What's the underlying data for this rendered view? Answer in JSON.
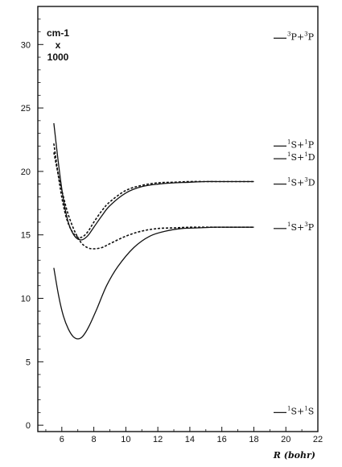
{
  "chart_data": {
    "type": "line",
    "unit_label_lines": [
      "cm-1",
      "x",
      "1000"
    ],
    "xlabel": "R (bohr)",
    "xlim": [
      4.5,
      22
    ],
    "ylim": [
      -0.5,
      33
    ],
    "x_ticks": [
      6,
      8,
      10,
      12,
      14,
      16,
      18,
      20,
      22
    ],
    "y_ticks": [
      0,
      5,
      10,
      15,
      20,
      25,
      30
    ],
    "grid": false,
    "asymptotes": [
      {
        "y": 30.5,
        "parts": [
          {
            "sup": "3"
          },
          {
            "text": "P+"
          },
          {
            "sup": "3"
          },
          {
            "text": "P"
          }
        ]
      },
      {
        "y": 22.0,
        "parts": [
          {
            "sup": "1"
          },
          {
            "text": "S+"
          },
          {
            "sup": "1"
          },
          {
            "text": "P"
          }
        ]
      },
      {
        "y": 21.0,
        "parts": [
          {
            "sup": "1"
          },
          {
            "text": "S+"
          },
          {
            "sup": "1"
          },
          {
            "text": "D"
          }
        ]
      },
      {
        "y": 19.0,
        "parts": [
          {
            "sup": "1"
          },
          {
            "text": "S+"
          },
          {
            "sup": "3"
          },
          {
            "text": "D"
          }
        ]
      },
      {
        "y": 15.5,
        "parts": [
          {
            "sup": "1"
          },
          {
            "text": "S+"
          },
          {
            "sup": "3"
          },
          {
            "text": "P"
          }
        ]
      },
      {
        "y": 1.0,
        "parts": [
          {
            "sup": "1"
          },
          {
            "text": "S+"
          },
          {
            "sup": "1"
          },
          {
            "text": "S"
          }
        ]
      }
    ],
    "series": [
      {
        "style": "solid",
        "x": [
          5.5,
          5.8,
          6.1,
          6.4,
          6.8,
          7.2,
          7.6,
          8.0,
          8.5,
          9.0,
          10.0,
          11.0,
          12.0,
          13.0,
          14.0,
          15.0,
          16.0,
          17.0,
          18.0
        ],
        "y": [
          23.8,
          20.5,
          17.8,
          16.0,
          14.9,
          14.6,
          14.9,
          15.6,
          16.5,
          17.3,
          18.3,
          18.8,
          19.0,
          19.1,
          19.15,
          19.2,
          19.2,
          19.2,
          19.2
        ]
      },
      {
        "style": "dashed",
        "x": [
          5.5,
          5.8,
          6.1,
          6.4,
          6.8,
          7.2,
          7.6,
          8.0,
          8.5,
          9.0,
          10.0,
          11.0,
          12.0,
          13.0,
          14.0,
          15.0,
          16.0,
          17.0,
          18.0
        ],
        "y": [
          22.2,
          19.5,
          17.3,
          15.9,
          15.0,
          14.8,
          15.2,
          16.0,
          16.9,
          17.6,
          18.5,
          18.9,
          19.1,
          19.15,
          19.2,
          19.2,
          19.2,
          19.2,
          19.2
        ]
      },
      {
        "style": "dashed",
        "x": [
          5.5,
          5.8,
          6.1,
          6.4,
          6.8,
          7.2,
          7.6,
          8.0,
          8.5,
          9.0,
          10.0,
          11.0,
          12.0,
          13.0,
          14.0,
          15.0,
          16.0,
          17.0,
          18.0
        ],
        "y": [
          21.5,
          19.6,
          18.0,
          16.6,
          15.3,
          14.4,
          14.0,
          13.9,
          14.0,
          14.3,
          14.9,
          15.3,
          15.5,
          15.55,
          15.6,
          15.6,
          15.6,
          15.6,
          15.6
        ]
      },
      {
        "style": "solid",
        "x": [
          5.5,
          5.8,
          6.1,
          6.4,
          6.7,
          7.0,
          7.3,
          7.7,
          8.2,
          8.8,
          9.5,
          10.5,
          11.5,
          12.5,
          13.5,
          14.5,
          15.5,
          16.5,
          17.5,
          18.0
        ],
        "y": [
          12.4,
          10.2,
          8.6,
          7.6,
          7.0,
          6.8,
          7.0,
          7.8,
          9.2,
          11.0,
          12.5,
          14.0,
          14.9,
          15.3,
          15.5,
          15.55,
          15.6,
          15.6,
          15.6,
          15.6
        ]
      }
    ]
  }
}
